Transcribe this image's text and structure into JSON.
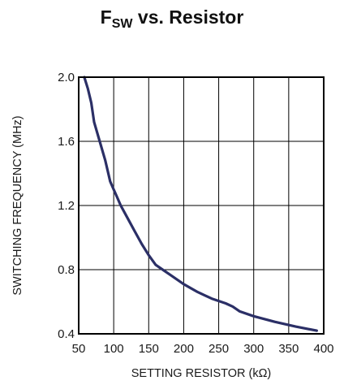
{
  "chart_data": {
    "type": "line",
    "title": {
      "prefix": "F",
      "subscript": "SW",
      "suffix": " vs. Resistor"
    },
    "xlabel": "SETTING RESISTOR (kΩ)",
    "ylabel": "SWITCHING FREQUENCY (MHz)",
    "xlim": [
      50,
      400
    ],
    "ylim": [
      0.4,
      2.0
    ],
    "xticks": [
      "50",
      "100",
      "150",
      "200",
      "250",
      "300",
      "350",
      "400"
    ],
    "yticks": [
      "0.4",
      "0.8",
      "1.2",
      "1.6",
      "2.0"
    ],
    "grid": true,
    "line_color": "#2b2f66",
    "series": [
      {
        "x": [
          58,
          63,
          68,
          72,
          80,
          88,
          95,
          100,
          105,
          110,
          120,
          130,
          140,
          150,
          160,
          170,
          180,
          200,
          220,
          240,
          260,
          270,
          280,
          300,
          330,
          360,
          390
        ],
        "y": [
          2.0,
          1.93,
          1.84,
          1.72,
          1.6,
          1.48,
          1.35,
          1.3,
          1.25,
          1.2,
          1.12,
          1.04,
          0.96,
          0.89,
          0.83,
          0.8,
          0.77,
          0.71,
          0.66,
          0.62,
          0.59,
          0.57,
          0.54,
          0.51,
          0.475,
          0.445,
          0.42
        ]
      }
    ]
  }
}
